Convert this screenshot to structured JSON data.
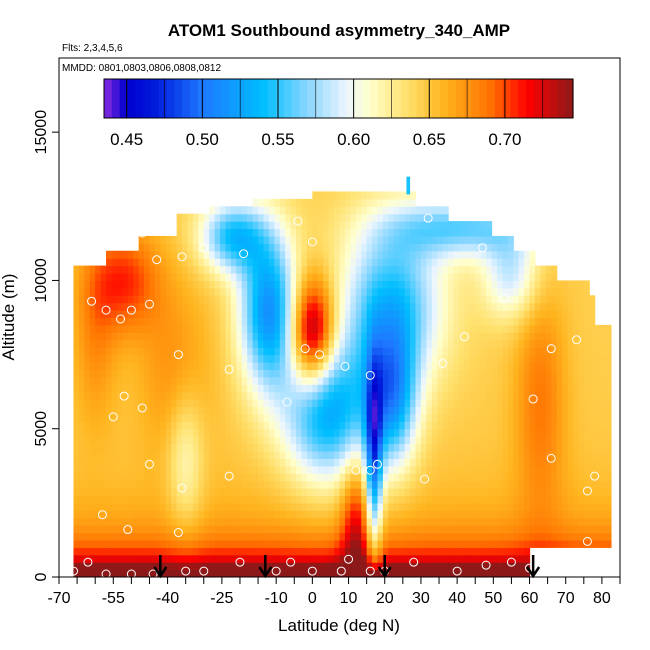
{
  "chart_data": {
    "type": "heatmap",
    "title": "ATOM1 Southbound asymmetry_340_AMP",
    "flights_label": "Flts: 2,3,4,5,6",
    "mmdd_label": "MMDD: 0801,0803,0806,0808,0812",
    "xlabel": "Latitude (deg N)",
    "ylabel": "Altitude (m)",
    "xlim": [
      -70,
      85
    ],
    "ylim": [
      0,
      17500
    ],
    "x_ticks": [
      -70,
      -55,
      -40,
      -25,
      -10,
      0,
      10,
      20,
      30,
      40,
      50,
      60,
      70,
      80
    ],
    "x_tick_labels": [
      "-70",
      "-55",
      "-40",
      "-25",
      "-10",
      "0",
      "10",
      "20",
      "30",
      "40",
      "50",
      "60",
      "70",
      "80"
    ],
    "y_ticks": [
      0,
      5000,
      10000,
      15000
    ],
    "y_tick_labels": [
      "0",
      "5000",
      "10000",
      "15000"
    ],
    "colorbar": {
      "range": [
        0.435,
        0.745
      ],
      "ticks": [
        0.45,
        0.5,
        0.55,
        0.6,
        0.65,
        0.7
      ],
      "tick_labels": [
        "0.45",
        "0.50",
        "0.55",
        "0.60",
        "0.65",
        "0.70"
      ]
    },
    "profile_arrow_latitudes": [
      -42,
      -13,
      20,
      61
    ],
    "grid": false
  }
}
